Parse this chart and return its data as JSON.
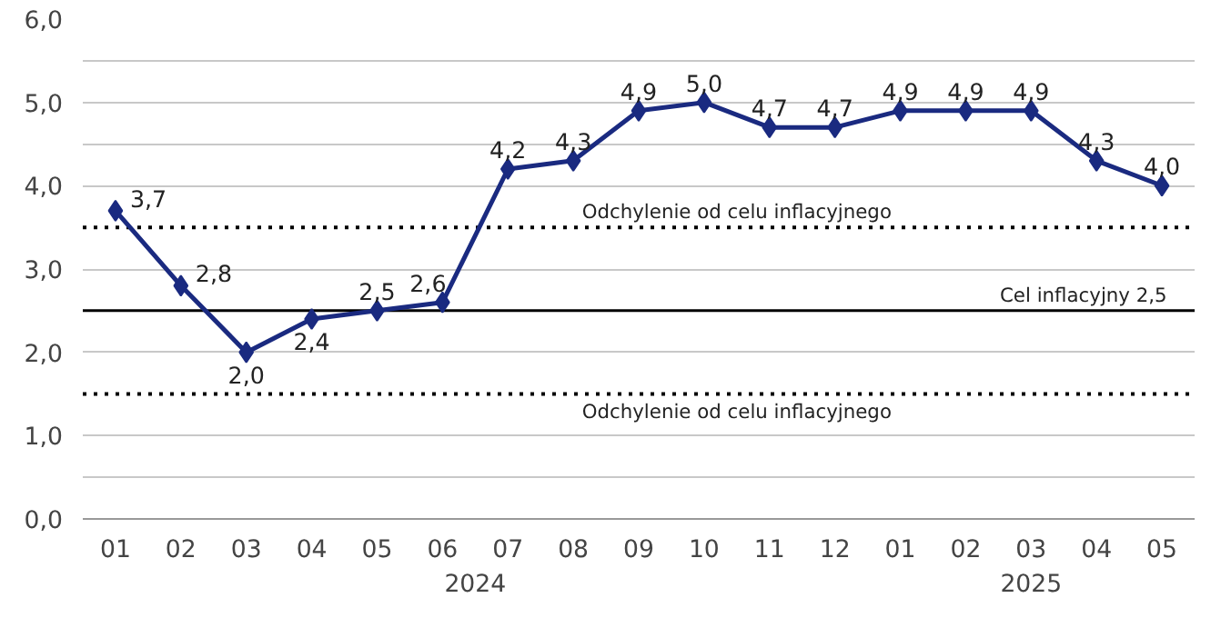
{
  "chart_data": {
    "type": "line",
    "categories": [
      "01",
      "02",
      "03",
      "04",
      "05",
      "06",
      "07",
      "08",
      "09",
      "10",
      "11",
      "12",
      "01",
      "02",
      "03",
      "04",
      "05"
    ],
    "series": [
      {
        "color": "#1a2a80",
        "values": [
          3.7,
          2.8,
          2.0,
          2.4,
          2.5,
          2.6,
          4.2,
          4.3,
          4.9,
          5.0,
          4.7,
          4.7,
          4.9,
          4.9,
          4.9,
          4.3,
          4.0
        ],
        "value_labels": [
          "3,7",
          "2,8",
          "2,0",
          "2,4",
          "2,5",
          "2,6",
          "4,2",
          "4,3",
          "4,9",
          "5,0",
          "4,7",
          "4,7",
          "4,9",
          "4,9",
          "4,9",
          "4,3",
          "4,0"
        ]
      }
    ],
    "ylim": [
      0,
      6
    ],
    "yticks": [
      {
        "value": 0,
        "label": "0,0"
      },
      {
        "value": 0.5,
        "label": null
      },
      {
        "value": 1,
        "label": "1,0"
      },
      {
        "value": 2,
        "label": "2,0"
      },
      {
        "value": 3,
        "label": "3,0"
      },
      {
        "value": 4,
        "label": "4,0"
      },
      {
        "value": 4.5,
        "label": null
      },
      {
        "value": 5,
        "label": "5,0"
      },
      {
        "value": 5.5,
        "label": null
      },
      {
        "value": 6,
        "label": "6,0"
      }
    ],
    "grid": "y",
    "marker": "diamond",
    "line_style": "solid",
    "ref_lines": [
      {
        "axis": "y",
        "value": 3.5,
        "label": "Odchylenie od celu inflacyjnego",
        "line_style": "dotted",
        "color": "#000000"
      },
      {
        "axis": "y",
        "value": 2.5,
        "label": "Cel inflacyjny 2,5",
        "line_style": "solid",
        "color": "#000000"
      },
      {
        "axis": "y",
        "value": 1.5,
        "label": "Odchylenie od celu inflacyjnego",
        "line_style": "dotted",
        "color": "#000000"
      }
    ],
    "annotations": [
      "2024",
      "2025"
    ]
  }
}
